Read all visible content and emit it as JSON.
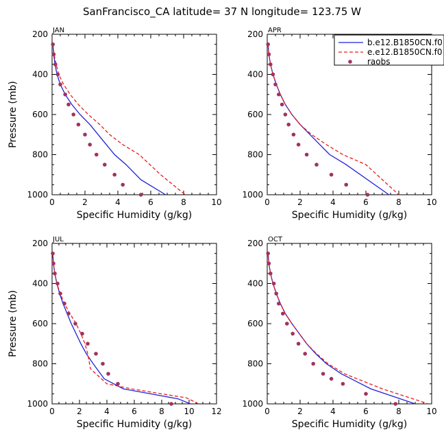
{
  "figure_title": "SanFrancisco_CA  latitude= 37 N longitude= 123.75 W",
  "legend": [
    "b.e12.B1850CN.f0",
    "e.e12.B1850CN.f0",
    "raobs"
  ],
  "colors": {
    "model_b": "#1f1fd9",
    "model_e": "#e51e1e",
    "raobs": "#a0335e"
  },
  "chart_data": [
    {
      "type": "line",
      "panel": "JAN",
      "xlabel": "Specific Humidity (g/kg)",
      "ylabel": "Pressure (mb)",
      "xlim": [
        0,
        10
      ],
      "ylim": [
        1000,
        200
      ],
      "y_inverted": true,
      "xticks": [
        0,
        2,
        4,
        6,
        8,
        10
      ],
      "yticks": [
        200,
        400,
        600,
        800,
        1000
      ],
      "series": [
        {
          "name": "b.e12.B1850CN.f0",
          "style": "solid",
          "x": [
            0.05,
            0.1,
            0.18,
            0.3,
            0.5,
            0.8,
            1.2,
            1.7,
            2.3,
            2.8,
            3.3,
            3.8,
            4.5,
            5.4,
            6.9
          ],
          "y": [
            250,
            300,
            350,
            400,
            450,
            500,
            550,
            600,
            650,
            700,
            750,
            800,
            850,
            925,
            1000
          ]
        },
        {
          "name": "e.e12.B1850CN.f0",
          "style": "dashed",
          "x": [
            0.05,
            0.12,
            0.25,
            0.4,
            0.7,
            1.1,
            1.6,
            2.2,
            2.9,
            3.5,
            4.3,
            5.3,
            6.6,
            8.1
          ],
          "y": [
            250,
            300,
            350,
            400,
            450,
            500,
            550,
            600,
            650,
            700,
            750,
            800,
            900,
            1000
          ]
        },
        {
          "name": "raobs",
          "style": "dots",
          "x": [
            0.05,
            0.1,
            0.2,
            0.35,
            0.5,
            0.8,
            1.0,
            1.3,
            1.6,
            2.0,
            2.3,
            2.7,
            3.2,
            3.8,
            4.3,
            5.4
          ],
          "y": [
            250,
            300,
            350,
            400,
            450,
            500,
            550,
            600,
            650,
            700,
            750,
            800,
            850,
            900,
            950,
            1000
          ]
        }
      ]
    },
    {
      "type": "line",
      "panel": "APR",
      "xlabel": "Specific Humidity (g/kg)",
      "ylabel": "",
      "xlim": [
        0,
        10
      ],
      "ylim": [
        1000,
        200
      ],
      "y_inverted": true,
      "xticks": [
        0,
        2,
        4,
        6,
        8,
        10
      ],
      "yticks": [
        200,
        400,
        600,
        800,
        1000
      ],
      "series": [
        {
          "name": "b.e12.B1850CN.f0",
          "style": "solid",
          "x": [
            0.05,
            0.1,
            0.2,
            0.35,
            0.55,
            0.8,
            1.1,
            1.5,
            2.0,
            2.6,
            3.2,
            3.8,
            4.8,
            7.4
          ],
          "y": [
            250,
            300,
            350,
            400,
            450,
            500,
            550,
            600,
            650,
            700,
            750,
            800,
            850,
            1000
          ]
        },
        {
          "name": "e.e12.B1850CN.f0",
          "style": "dashed",
          "x": [
            0.05,
            0.1,
            0.2,
            0.35,
            0.55,
            0.8,
            1.1,
            1.5,
            2.0,
            2.7,
            3.6,
            4.6,
            6.0,
            8.0
          ],
          "y": [
            250,
            300,
            350,
            400,
            450,
            500,
            550,
            600,
            650,
            700,
            750,
            800,
            850,
            1000
          ]
        },
        {
          "name": "raobs",
          "style": "dots",
          "x": [
            0.05,
            0.1,
            0.2,
            0.35,
            0.5,
            0.7,
            0.9,
            1.1,
            1.3,
            1.6,
            1.9,
            2.4,
            3.0,
            3.9,
            4.8,
            6.1
          ],
          "y": [
            250,
            300,
            350,
            400,
            450,
            500,
            550,
            600,
            650,
            700,
            750,
            800,
            850,
            900,
            950,
            1000
          ]
        }
      ]
    },
    {
      "type": "line",
      "panel": "JUL",
      "xlabel": "Specific Humidity (g/kg)",
      "ylabel": "Pressure (mb)",
      "xlim": [
        0,
        12
      ],
      "ylim": [
        1000,
        200
      ],
      "y_inverted": true,
      "xticks": [
        0,
        2,
        4,
        6,
        8,
        10,
        12
      ],
      "yticks": [
        200,
        400,
        600,
        800,
        1000
      ],
      "series": [
        {
          "name": "b.e12.B1850CN.f0",
          "style": "solid",
          "x": [
            0.05,
            0.1,
            0.2,
            0.35,
            0.55,
            0.8,
            1.1,
            1.4,
            1.75,
            2.1,
            2.5,
            3.0,
            3.8,
            5.2,
            7.2,
            9.2,
            10.1
          ],
          "y": [
            250,
            300,
            350,
            400,
            450,
            500,
            550,
            600,
            650,
            700,
            750,
            800,
            875,
            925,
            950,
            975,
            1000
          ]
        },
        {
          "name": "e.e12.B1850CN.f0",
          "style": "dashed",
          "x": [
            0.05,
            0.1,
            0.2,
            0.35,
            0.6,
            0.9,
            1.3,
            1.75,
            2.1,
            2.4,
            2.6,
            2.8,
            4.0,
            5.8,
            8.0,
            9.8,
            10.7
          ],
          "y": [
            250,
            300,
            350,
            400,
            450,
            500,
            550,
            600,
            650,
            700,
            750,
            825,
            900,
            925,
            950,
            970,
            1000
          ]
        },
        {
          "name": "raobs",
          "style": "dots",
          "x": [
            0.05,
            0.1,
            0.2,
            0.4,
            0.6,
            0.9,
            1.2,
            1.7,
            2.2,
            2.6,
            3.2,
            3.7,
            4.1,
            4.8,
            8.7
          ],
          "y": [
            250,
            300,
            350,
            400,
            450,
            500,
            550,
            600,
            650,
            700,
            750,
            800,
            850,
            900,
            1000
          ]
        }
      ]
    },
    {
      "type": "line",
      "panel": "OCT",
      "xlabel": "Specific Humidity (g/kg)",
      "ylabel": "",
      "xlim": [
        0,
        10
      ],
      "ylim": [
        1000,
        200
      ],
      "y_inverted": true,
      "xticks": [
        0,
        2,
        4,
        6,
        8,
        10
      ],
      "yticks": [
        200,
        400,
        600,
        800,
        1000
      ],
      "series": [
        {
          "name": "b.e12.B1850CN.f0",
          "style": "solid",
          "x": [
            0.05,
            0.1,
            0.2,
            0.35,
            0.55,
            0.8,
            1.1,
            1.5,
            1.95,
            2.4,
            2.95,
            3.6,
            4.5,
            6.3,
            9.0
          ],
          "y": [
            250,
            300,
            350,
            400,
            450,
            500,
            550,
            600,
            650,
            700,
            750,
            800,
            850,
            925,
            1000
          ]
        },
        {
          "name": "e.e12.B1850CN.f0",
          "style": "dashed",
          "x": [
            0.05,
            0.1,
            0.2,
            0.35,
            0.55,
            0.8,
            1.1,
            1.5,
            1.95,
            2.4,
            3.0,
            3.7,
            4.7,
            7.0,
            9.8
          ],
          "y": [
            250,
            300,
            350,
            400,
            450,
            500,
            550,
            600,
            650,
            700,
            750,
            800,
            850,
            925,
            1000
          ]
        },
        {
          "name": "raobs",
          "style": "dots",
          "x": [
            0.05,
            0.1,
            0.2,
            0.4,
            0.55,
            0.7,
            0.95,
            1.2,
            1.55,
            1.9,
            2.3,
            2.8,
            3.4,
            3.9,
            4.6,
            6.0,
            7.8
          ],
          "y": [
            250,
            300,
            350,
            400,
            450,
            500,
            550,
            600,
            650,
            700,
            750,
            800,
            850,
            875,
            900,
            950,
            1000
          ]
        }
      ]
    }
  ]
}
